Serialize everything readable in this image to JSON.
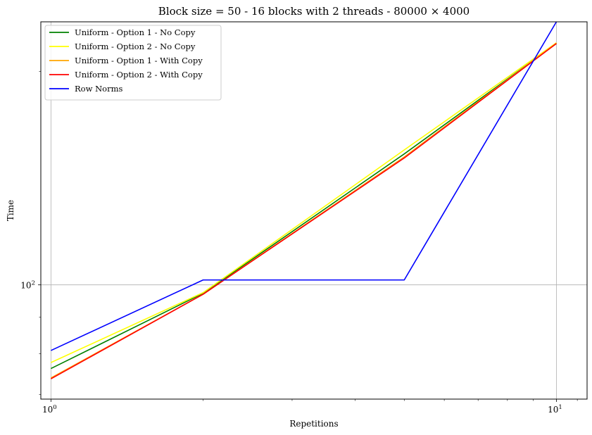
{
  "chart_data": {
    "type": "line",
    "title": "Block size = 50 - 16 blocks with 2 threads - 80000 × 4000",
    "xlabel": "Repetitions",
    "ylabel": "Time",
    "xscale": "log",
    "yscale": "log",
    "xlim": [
      0.955,
      11.5
    ],
    "ylim": [
      69,
      235
    ],
    "grid": "major",
    "legend_position": "upper-left",
    "x_major_ticks": [
      {
        "value": 1,
        "label": "10^0",
        "base": "10",
        "exp": "0"
      },
      {
        "value": 10,
        "label": "10^1",
        "base": "10",
        "exp": "1"
      }
    ],
    "x_minor_ticks": [
      2,
      3,
      4,
      5,
      6,
      7,
      8,
      9,
      11
    ],
    "y_major_ticks": [
      {
        "value": 100,
        "label": "10^2",
        "base": "10",
        "exp": "2"
      }
    ],
    "y_minor_ticks": [
      70,
      80,
      90,
      200
    ],
    "x": [
      1,
      2,
      5,
      10
    ],
    "series": [
      {
        "name": "Uniform - Option 1 - No Copy",
        "color": "#008000",
        "values": [
          76.2,
          97.3,
          153.0,
          219.0
        ]
      },
      {
        "name": "Uniform - Option 2 - No Copy",
        "color": "#ffff00",
        "values": [
          77.7,
          97.5,
          155.0,
          219.5
        ]
      },
      {
        "name": "Uniform - Option 1 - With Copy",
        "color": "#ffa500",
        "values": [
          73.9,
          97.0,
          151.5,
          219.3
        ]
      },
      {
        "name": "Uniform - Option 2 - With Copy",
        "color": "#ff0000",
        "values": [
          73.7,
          97.0,
          151.0,
          219.0
        ]
      },
      {
        "name": "Row Norms",
        "color": "#0000ff",
        "values": [
          80.8,
          101.6,
          101.6,
          235.0
        ]
      }
    ]
  }
}
